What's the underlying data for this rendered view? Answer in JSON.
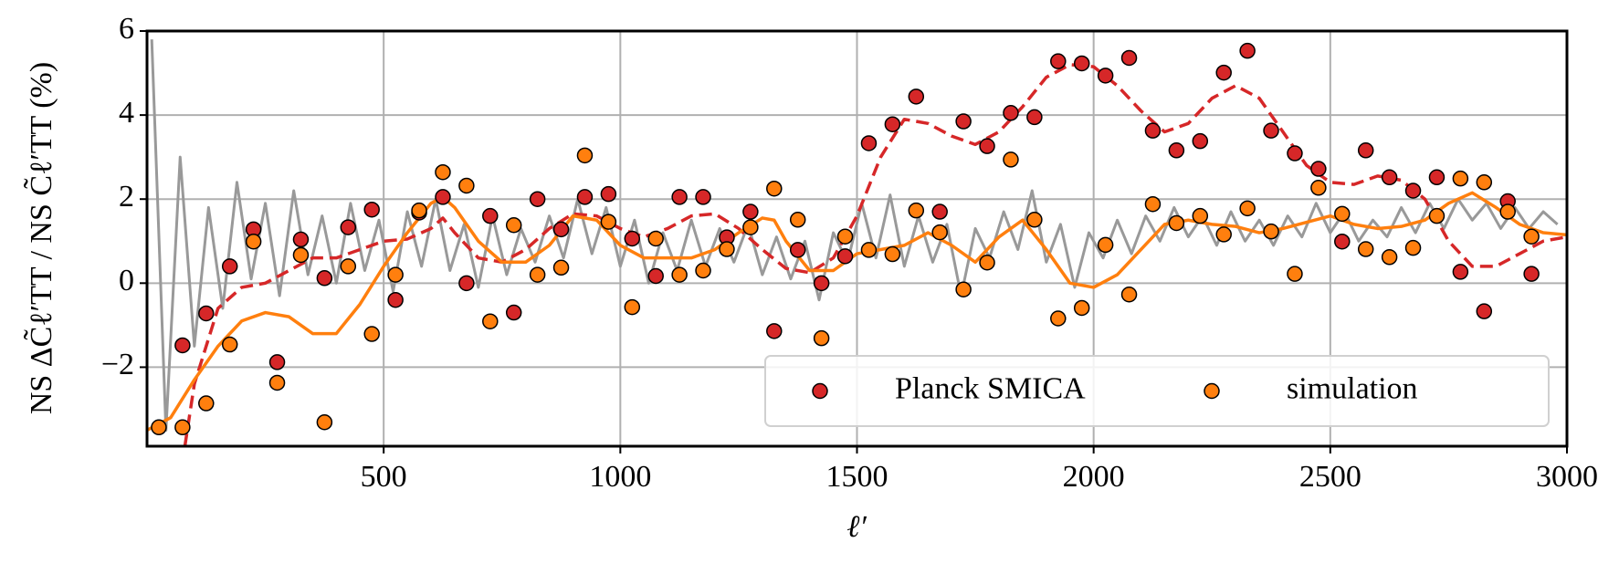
{
  "chart_data": {
    "type": "scatter",
    "xlabel": "ℓ′",
    "ylabel": "NS ΔC̃ℓ′TT / NS C̃ℓ′TT (%)",
    "xlim": [
      0,
      3000
    ],
    "ylim": [
      -3.88,
      6
    ],
    "xticks": [
      500,
      1000,
      1500,
      2000,
      2500,
      3000
    ],
    "yticks": [
      {
        "value": -2,
        "label": "−2"
      },
      0,
      2,
      4,
      6
    ],
    "grid": true,
    "legend": "lower right",
    "series": [
      {
        "style": "line",
        "color": "#999999",
        "width": 3,
        "x": [
          10,
          40,
          70,
          100,
          130,
          160,
          190,
          220,
          250,
          280,
          310,
          340,
          370,
          400,
          430,
          460,
          490,
          520,
          550,
          580,
          610,
          640,
          670,
          700,
          730,
          760,
          790,
          820,
          850,
          880,
          910,
          940,
          970,
          1000,
          1030,
          1060,
          1090,
          1120,
          1150,
          1180,
          1210,
          1240,
          1270,
          1300,
          1330,
          1360,
          1390,
          1420,
          1450,
          1480,
          1510,
          1540,
          1570,
          1600,
          1630,
          1660,
          1690,
          1720,
          1750,
          1780,
          1810,
          1840,
          1870,
          1900,
          1930,
          1960,
          1990,
          2020,
          2050,
          2080,
          2110,
          2140,
          2170,
          2200,
          2230,
          2260,
          2290,
          2320,
          2350,
          2380,
          2410,
          2440,
          2470,
          2500,
          2530,
          2560,
          2590,
          2620,
          2650,
          2680,
          2710,
          2740,
          2770,
          2800,
          2830,
          2860,
          2890,
          2920,
          2950,
          2980
        ],
        "values": [
          5.8,
          -3.5,
          3.0,
          -1.5,
          1.8,
          -0.6,
          2.4,
          0.1,
          1.9,
          -0.3,
          2.2,
          0.2,
          1.6,
          0.0,
          1.9,
          0.3,
          1.5,
          -0.2,
          1.7,
          0.4,
          2.0,
          0.3,
          1.4,
          -0.1,
          1.6,
          0.2,
          1.3,
          0.5,
          1.6,
          0.6,
          2.0,
          0.7,
          1.8,
          0.4,
          1.5,
          0.0,
          1.2,
          0.3,
          1.5,
          0.4,
          1.3,
          0.5,
          1.4,
          0.2,
          1.1,
          0.1,
          1.0,
          -0.4,
          1.2,
          0.5,
          1.9,
          0.6,
          2.1,
          0.4,
          1.6,
          0.5,
          1.4,
          -0.3,
          1.3,
          0.6,
          1.7,
          0.8,
          2.2,
          0.5,
          1.4,
          -0.1,
          1.2,
          0.6,
          1.5,
          0.7,
          1.6,
          1.0,
          1.8,
          1.1,
          1.6,
          0.9,
          1.7,
          1.0,
          1.5,
          0.9,
          1.6,
          1.1,
          1.9,
          1.2,
          1.7,
          1.0,
          1.5,
          1.1,
          1.8,
          1.2,
          1.9,
          1.3,
          2.0,
          1.5,
          1.9,
          1.3,
          1.8,
          1.3,
          1.7,
          1.4
        ]
      },
      {
        "style": "line",
        "color": "#d62728",
        "width": 3.5,
        "dash": true,
        "x": [
          80,
          100,
          150,
          200,
          250,
          300,
          350,
          400,
          450,
          500,
          550,
          600,
          625,
          650,
          700,
          750,
          800,
          850,
          900,
          950,
          1000,
          1050,
          1100,
          1150,
          1200,
          1250,
          1300,
          1350,
          1400,
          1450,
          1500,
          1550,
          1600,
          1650,
          1700,
          1750,
          1800,
          1850,
          1900,
          1950,
          2000,
          2050,
          2100,
          2150,
          2200,
          2250,
          2300,
          2350,
          2400,
          2450,
          2500,
          2550,
          2600,
          2650,
          2700,
          2750,
          2800,
          2850,
          2900,
          2950,
          3000
        ],
        "values": [
          -3.88,
          -2.4,
          -0.6,
          -0.1,
          0.0,
          0.3,
          0.6,
          0.6,
          0.8,
          1.0,
          1.05,
          1.3,
          1.55,
          1.2,
          0.6,
          0.5,
          0.8,
          1.3,
          1.65,
          1.6,
          1.3,
          1.1,
          1.3,
          1.6,
          1.65,
          1.3,
          0.8,
          0.35,
          0.25,
          0.6,
          1.6,
          3.0,
          3.9,
          3.8,
          3.5,
          3.3,
          3.6,
          4.2,
          4.9,
          5.2,
          5.15,
          4.7,
          4.1,
          3.6,
          3.8,
          4.4,
          4.7,
          4.4,
          3.6,
          2.8,
          2.4,
          2.35,
          2.55,
          2.45,
          2.0,
          1.0,
          0.4,
          0.4,
          0.7,
          1.0,
          1.1
        ]
      },
      {
        "style": "line",
        "color": "#ff7f0e",
        "width": 3.5,
        "x": [
          0,
          50,
          100,
          150,
          200,
          250,
          300,
          350,
          400,
          450,
          500,
          550,
          600,
          625,
          650,
          700,
          750,
          800,
          850,
          900,
          950,
          1000,
          1050,
          1100,
          1150,
          1200,
          1250,
          1300,
          1325,
          1350,
          1400,
          1450,
          1500,
          1550,
          1600,
          1650,
          1700,
          1750,
          1800,
          1850,
          1900,
          1950,
          2000,
          2050,
          2100,
          2150,
          2200,
          2250,
          2300,
          2350,
          2400,
          2450,
          2500,
          2550,
          2600,
          2650,
          2700,
          2750,
          2800,
          2850,
          2900,
          2950,
          3000
        ],
        "values": [
          -3.5,
          -3.2,
          -2.3,
          -1.5,
          -0.9,
          -0.7,
          -0.8,
          -1.2,
          -1.2,
          -0.5,
          0.4,
          1.2,
          1.9,
          2.05,
          1.8,
          1.0,
          0.5,
          0.5,
          0.9,
          1.6,
          1.5,
          0.9,
          0.6,
          0.6,
          0.6,
          0.8,
          1.2,
          1.55,
          1.5,
          1.0,
          0.3,
          0.3,
          0.7,
          0.8,
          0.9,
          1.2,
          0.9,
          0.5,
          1.1,
          1.5,
          0.8,
          0.0,
          -0.1,
          0.2,
          0.8,
          1.4,
          1.5,
          1.4,
          1.35,
          1.2,
          1.3,
          1.45,
          1.6,
          1.4,
          1.3,
          1.35,
          1.5,
          1.9,
          2.15,
          1.8,
          1.4,
          1.2,
          1.15
        ]
      },
      {
        "style": "scatter",
        "name": "Planck SMICA",
        "color": "#d62728",
        "edgecolor": "#000000",
        "x": [
          75,
          125,
          175,
          225,
          275,
          325,
          375,
          425,
          475,
          525,
          575,
          625,
          675,
          725,
          775,
          825,
          875,
          925,
          975,
          1025,
          1075,
          1125,
          1175,
          1225,
          1275,
          1325,
          1375,
          1425,
          1475,
          1525,
          1575,
          1625,
          1675,
          1725,
          1775,
          1825,
          1875,
          1925,
          1975,
          2025,
          2075,
          2125,
          2175,
          2225,
          2275,
          2325,
          2375,
          2425,
          2475,
          2525,
          2575,
          2625,
          2675,
          2725,
          2775,
          2825,
          2875,
          2925
        ],
        "values": [
          -1.48,
          -0.72,
          0.4,
          1.28,
          -1.88,
          1.04,
          0.12,
          1.33,
          1.75,
          -0.4,
          1.68,
          2.05,
          0.0,
          1.6,
          -0.7,
          2.0,
          1.28,
          2.05,
          2.12,
          1.06,
          0.17,
          2.05,
          2.05,
          1.09,
          1.7,
          -1.14,
          0.79,
          0.0,
          0.64,
          3.33,
          3.78,
          4.44,
          1.7,
          3.85,
          3.26,
          4.05,
          3.95,
          5.28,
          5.23,
          4.94,
          5.36,
          3.63,
          3.16,
          3.38,
          5.01,
          5.53,
          3.63,
          3.09,
          2.72,
          0.99,
          3.16,
          2.52,
          2.2,
          2.52,
          0.27,
          -0.67,
          1.95,
          0.22
        ]
      },
      {
        "style": "scatter",
        "name": "simulation",
        "color": "#ff7f0e",
        "edgecolor": "#000000",
        "x": [
          25,
          75,
          125,
          175,
          225,
          275,
          325,
          375,
          425,
          475,
          525,
          575,
          625,
          675,
          725,
          775,
          825,
          875,
          925,
          975,
          1025,
          1075,
          1125,
          1175,
          1225,
          1275,
          1325,
          1375,
          1425,
          1475,
          1525,
          1575,
          1625,
          1675,
          1725,
          1775,
          1825,
          1875,
          1925,
          1975,
          2025,
          2075,
          2125,
          2175,
          2225,
          2275,
          2325,
          2375,
          2425,
          2475,
          2525,
          2575,
          2625,
          2675,
          2725,
          2775,
          2825,
          2875,
          2925
        ],
        "values": [
          -3.43,
          -3.43,
          -2.86,
          -1.46,
          0.99,
          -2.37,
          0.67,
          -3.31,
          0.4,
          -1.21,
          0.2,
          1.73,
          2.64,
          2.32,
          -0.91,
          1.38,
          0.2,
          0.37,
          3.04,
          1.46,
          -0.57,
          1.06,
          0.2,
          0.3,
          0.81,
          1.33,
          2.25,
          1.51,
          -1.31,
          1.11,
          0.79,
          0.69,
          1.73,
          1.21,
          -0.15,
          0.49,
          2.94,
          1.51,
          -0.84,
          -0.59,
          0.91,
          -0.27,
          1.88,
          1.43,
          1.6,
          1.16,
          1.78,
          1.23,
          0.22,
          2.27,
          1.65,
          0.81,
          0.62,
          0.84,
          1.6,
          2.49,
          2.4,
          1.7,
          1.11
        ]
      }
    ]
  }
}
